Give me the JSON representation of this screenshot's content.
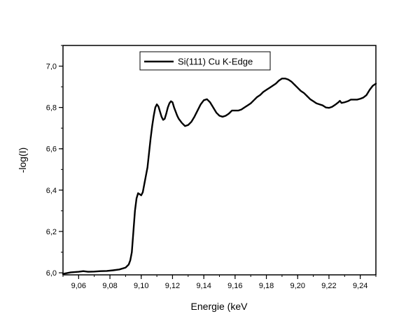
{
  "chart_data": {
    "type": "line",
    "xlabel": "Energie (keV",
    "ylabel": "-log(I)",
    "xlim": [
      9.05,
      9.25
    ],
    "ylim": [
      5.99,
      7.1
    ],
    "x_ticks": [
      9.06,
      9.08,
      9.1,
      9.12,
      9.14,
      9.16,
      9.18,
      9.2,
      9.22,
      9.24
    ],
    "x_tick_labels": [
      "9,06",
      "9,08",
      "9,10",
      "9,12",
      "9,14",
      "9,16",
      "9,18",
      "9,20",
      "9,22",
      "9,24"
    ],
    "y_ticks": [
      6.0,
      6.2,
      6.4,
      6.6,
      6.8,
      7.0
    ],
    "y_tick_labels": [
      "6,0",
      "6,2",
      "6,4",
      "6,6",
      "6,8",
      "7,0"
    ],
    "legend_placement": "top-center",
    "line_color": "#000000",
    "series": [
      {
        "name": "Si(111) Cu K-Edge",
        "x": [
          9.05,
          9.055,
          9.06,
          9.063,
          9.066,
          9.07,
          9.074,
          9.078,
          9.082,
          9.086,
          9.09,
          9.092,
          9.093,
          9.094,
          9.095,
          9.096,
          9.097,
          9.098,
          9.099,
          9.1,
          9.101,
          9.102,
          9.103,
          9.104,
          9.105,
          9.106,
          9.107,
          9.108,
          9.109,
          9.11,
          9.111,
          9.112,
          9.113,
          9.114,
          9.115,
          9.116,
          9.117,
          9.118,
          9.119,
          9.12,
          9.121,
          9.122,
          9.123,
          9.124,
          9.126,
          9.128,
          9.13,
          9.132,
          9.134,
          9.136,
          9.138,
          9.14,
          9.142,
          9.144,
          9.146,
          9.148,
          9.15,
          9.152,
          9.154,
          9.156,
          9.158,
          9.16,
          9.162,
          9.164,
          9.166,
          9.168,
          9.17,
          9.172,
          9.174,
          9.176,
          9.178,
          9.18,
          9.182,
          9.184,
          9.186,
          9.188,
          9.19,
          9.192,
          9.194,
          9.196,
          9.198,
          9.2,
          9.202,
          9.204,
          9.206,
          9.208,
          9.21,
          9.212,
          9.214,
          9.216,
          9.218,
          9.22,
          9.222,
          9.224,
          9.226,
          9.227,
          9.228,
          9.23,
          9.232,
          9.234,
          9.236,
          9.238,
          9.24,
          9.242,
          9.244,
          9.246,
          9.248,
          9.25
        ],
        "y": [
          5.995,
          6.002,
          6.005,
          6.008,
          6.005,
          6.006,
          6.008,
          6.009,
          6.012,
          6.016,
          6.025,
          6.04,
          6.06,
          6.1,
          6.2,
          6.3,
          6.36,
          6.385,
          6.38,
          6.375,
          6.39,
          6.43,
          6.47,
          6.51,
          6.58,
          6.65,
          6.71,
          6.76,
          6.8,
          6.815,
          6.805,
          6.78,
          6.755,
          6.74,
          6.745,
          6.77,
          6.8,
          6.82,
          6.83,
          6.825,
          6.8,
          6.78,
          6.76,
          6.745,
          6.725,
          6.71,
          6.715,
          6.73,
          6.755,
          6.785,
          6.815,
          6.835,
          6.84,
          6.825,
          6.8,
          6.775,
          6.76,
          6.755,
          6.76,
          6.77,
          6.785,
          6.785,
          6.785,
          6.79,
          6.8,
          6.81,
          6.82,
          6.835,
          6.85,
          6.86,
          6.875,
          6.885,
          6.895,
          6.905,
          6.915,
          6.93,
          6.94,
          6.94,
          6.935,
          6.925,
          6.91,
          6.895,
          6.88,
          6.87,
          6.855,
          6.84,
          6.83,
          6.82,
          6.815,
          6.81,
          6.8,
          6.798,
          6.803,
          6.813,
          6.825,
          6.832,
          6.822,
          6.825,
          6.83,
          6.838,
          6.838,
          6.838,
          6.842,
          6.848,
          6.86,
          6.885,
          6.905,
          6.915
        ]
      }
    ]
  }
}
